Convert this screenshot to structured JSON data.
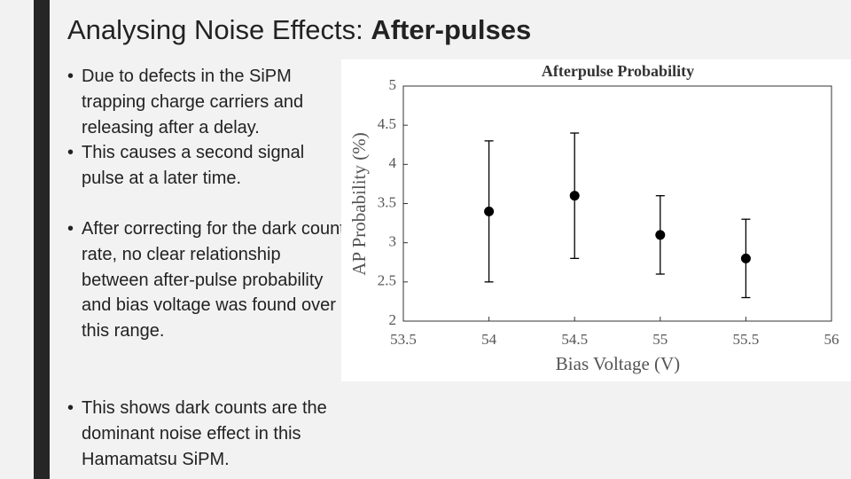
{
  "slide": {
    "title": "Analysing Noise Effects: ",
    "title_emphasis": "After-pulses",
    "bullets": [
      "Due to defects in the SiPM trapping charge carriers and releasing after a delay.",
      "This causes a second signal pulse at a later time.",
      "After correcting for the dark count rate, no clear relationship between after-pulse probability and bias voltage was found over this range.",
      "This shows dark counts are the dominant noise effect in this Hamamatsu SiPM."
    ]
  },
  "chart_data": {
    "type": "scatter",
    "title": "Afterpulse Probability",
    "x_label": "Bias Voltage (V)",
    "y_label": "AP Probability (%)",
    "x": [
      54,
      54.5,
      55,
      55.5
    ],
    "values": [
      3.4,
      3.6,
      3.1,
      2.8
    ],
    "errors": [
      0.9,
      0.8,
      0.5,
      0.5
    ],
    "color": "#000000",
    "xlim": [
      53.5,
      56
    ],
    "xticks": [
      53.5,
      54,
      54.5,
      55,
      55.5,
      56
    ],
    "ylim": [
      2,
      5
    ],
    "yticks": [
      2,
      2.5,
      3,
      3.5,
      4,
      4.5,
      5
    ]
  }
}
